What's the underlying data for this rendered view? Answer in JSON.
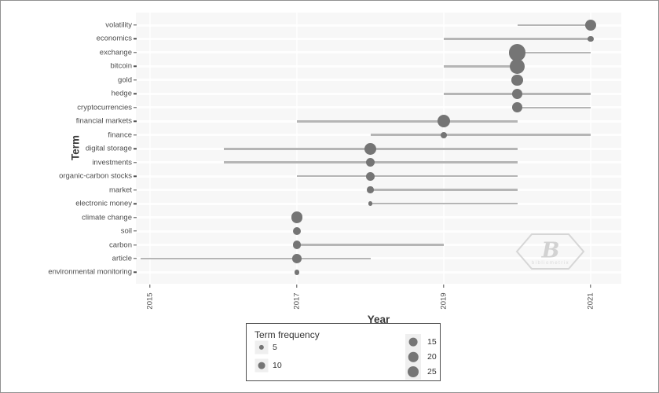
{
  "chart_data": {
    "type": "scatter",
    "variant": "trend-topics-bubble-timeline",
    "title": "",
    "xlabel": "Year",
    "ylabel": "Term",
    "x_ticks": [
      "2015",
      "2017",
      "2019",
      "2021"
    ],
    "x_range": [
      2014.8,
      2021.4
    ],
    "grid": true,
    "legend": {
      "title": "Term frequency",
      "position": "bottom-center",
      "sizes": [
        5,
        10,
        15,
        20,
        25
      ]
    },
    "colors": {
      "bubble": "#757575",
      "line": "#b5b5b5",
      "panel_bg": "#f7f7f7",
      "grid": "#ffffff",
      "axis_text": "#4d4d4d",
      "axis_title": "#3a3a3a"
    },
    "series": [
      {
        "term": "volatility",
        "freq": 28,
        "year_start": 2020,
        "year_peak": 2021,
        "year_end": 2021
      },
      {
        "term": "economics",
        "freq": 7,
        "year_start": 2019,
        "year_peak": 2021,
        "year_end": 2021
      },
      {
        "term": "exchange",
        "freq": 60,
        "year_start": 2020,
        "year_peak": 2020,
        "year_end": 2021
      },
      {
        "term": "bitcoin",
        "freq": 50,
        "year_start": 2019,
        "year_peak": 2020,
        "year_end": 2020
      },
      {
        "term": "gold",
        "freq": 26,
        "year_start": 2020,
        "year_peak": 2020,
        "year_end": 2020
      },
      {
        "term": "hedge",
        "freq": 22,
        "year_start": 2019,
        "year_peak": 2020,
        "year_end": 2021
      },
      {
        "term": "cryptocurrencies",
        "freq": 21,
        "year_start": 2020,
        "year_peak": 2020,
        "year_end": 2021
      },
      {
        "term": "financial markets",
        "freq": 33,
        "year_start": 2017,
        "year_peak": 2019,
        "year_end": 2020
      },
      {
        "term": "finance",
        "freq": 8,
        "year_start": 2018,
        "year_peak": 2019,
        "year_end": 2021
      },
      {
        "term": "digital storage",
        "freq": 30,
        "year_start": 2016,
        "year_peak": 2018,
        "year_end": 2020
      },
      {
        "term": "investments",
        "freq": 16,
        "year_start": 2016,
        "year_peak": 2018,
        "year_end": 2020
      },
      {
        "term": "organic-carbon stocks",
        "freq": 15,
        "year_start": 2017,
        "year_peak": 2018,
        "year_end": 2020
      },
      {
        "term": "market",
        "freq": 9,
        "year_start": 2018,
        "year_peak": 2018,
        "year_end": 2020
      },
      {
        "term": "electronic money",
        "freq": 4,
        "year_start": 2018,
        "year_peak": 2018,
        "year_end": 2020
      },
      {
        "term": "climate change",
        "freq": 28,
        "year_start": 2017,
        "year_peak": 2017,
        "year_end": 2017
      },
      {
        "term": "soil",
        "freq": 13,
        "year_start": 2017,
        "year_peak": 2017,
        "year_end": 2017
      },
      {
        "term": "carbon",
        "freq": 13,
        "year_start": 2017,
        "year_peak": 2017,
        "year_end": 2019
      },
      {
        "term": "article",
        "freq": 18,
        "year_start": 2014,
        "year_peak": 2017,
        "year_end": 2018
      },
      {
        "term": "environmental monitoring",
        "freq": 6,
        "year_start": 2017,
        "year_peak": 2017,
        "year_end": 2017
      }
    ]
  },
  "watermark": {
    "logo": "bibliometrix-hexagon-logo",
    "monogram": "B",
    "text": "bibliometrix"
  }
}
